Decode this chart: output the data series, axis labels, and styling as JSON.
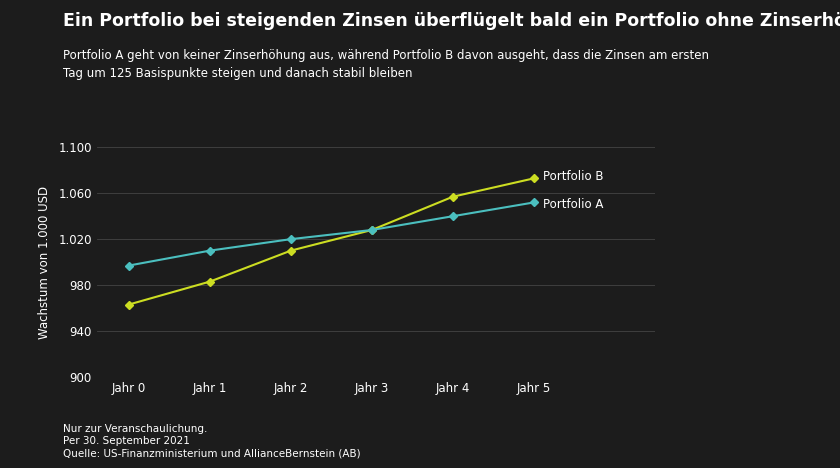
{
  "title": "Ein Portfolio bei steigenden Zinsen überflügelt bald ein Portfolio ohne Zinserhöhung",
  "subtitle": "Portfolio A geht von keiner Zinserhöhung aus, während Portfolio B davon ausgeht, dass die Zinsen am ersten\nTag um 125 Basispunkte steigen und danach stabil bleiben",
  "xlabel_categories": [
    "Jahr 0",
    "Jahr 1",
    "Jahr 2",
    "Jahr 3",
    "Jahr 4",
    "Jahr 5"
  ],
  "portfolio_a": [
    997,
    1010,
    1020,
    1028,
    1040,
    1052
  ],
  "portfolio_b": [
    963,
    983,
    1010,
    1028,
    1057,
    1073
  ],
  "color_a": "#4BBFBF",
  "color_b": "#CCDD22",
  "ylabel": "Wachstum von 1.000 USD",
  "ylim": [
    900,
    1100
  ],
  "yticks": [
    900,
    940,
    980,
    1020,
    1060,
    1100
  ],
  "ytick_labels": [
    "900",
    "940",
    "980",
    "1.020",
    "1.060",
    "1.100"
  ],
  "background_color": "#1C1C1C",
  "text_color": "#FFFFFF",
  "grid_color": "#444444",
  "title_fontsize": 12.5,
  "subtitle_fontsize": 8.5,
  "label_fontsize": 8.5,
  "tick_fontsize": 8.5,
  "footer_line1": "Nur zur Veranschaulichung.",
  "footer_line2": "Per 30. September 2021",
  "footer_line3": "Quelle: US-Finanzministerium und AllianceBernstein (AB)",
  "label_a": "Portfolio A",
  "label_b": "Portfolio B"
}
